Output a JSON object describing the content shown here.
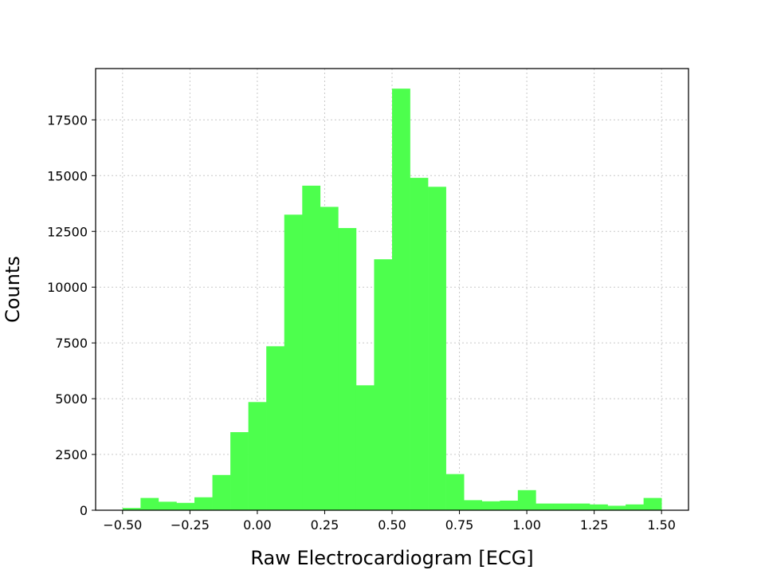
{
  "chart_data": {
    "type": "bar",
    "subtype": "histogram",
    "xlabel": "Raw Electrocardiogram [ECG]",
    "ylabel": "Counts",
    "xlim": [
      -0.6,
      1.6
    ],
    "ylim": [
      0,
      19800
    ],
    "grid": true,
    "color": "#4dff4d",
    "x_ticks": [
      {
        "value": -0.5,
        "label": "−0.50"
      },
      {
        "value": -0.25,
        "label": "−0.25"
      },
      {
        "value": 0.0,
        "label": "0.00"
      },
      {
        "value": 0.25,
        "label": "0.25"
      },
      {
        "value": 0.5,
        "label": "0.50"
      },
      {
        "value": 0.75,
        "label": "0.75"
      },
      {
        "value": 1.0,
        "label": "1.00"
      },
      {
        "value": 1.25,
        "label": "1.25"
      },
      {
        "value": 1.5,
        "label": "1.50"
      }
    ],
    "y_ticks": [
      {
        "value": 0,
        "label": "0"
      },
      {
        "value": 2500,
        "label": "2500"
      },
      {
        "value": 5000,
        "label": "5000"
      },
      {
        "value": 7500,
        "label": "7500"
      },
      {
        "value": 10000,
        "label": "10000"
      },
      {
        "value": 12500,
        "label": "12500"
      },
      {
        "value": 15000,
        "label": "15000"
      },
      {
        "value": 17500,
        "label": "17500"
      }
    ],
    "bin_edges": [
      -0.5,
      -0.4333,
      -0.3667,
      -0.3,
      -0.2333,
      -0.1667,
      -0.1,
      -0.0333,
      0.0333,
      0.1,
      0.1667,
      0.2333,
      0.3,
      0.3667,
      0.4333,
      0.5,
      0.5667,
      0.6333,
      0.7,
      0.7667,
      0.8333,
      0.9,
      0.9667,
      1.0333,
      1.1,
      1.1667,
      1.2333,
      1.3,
      1.3667,
      1.4333,
      1.5
    ],
    "values": [
      100,
      550,
      380,
      330,
      580,
      1580,
      3500,
      4850,
      7350,
      13250,
      14550,
      13600,
      12650,
      5600,
      11250,
      18900,
      14900,
      14500,
      1620,
      450,
      400,
      430,
      900,
      300,
      300,
      300,
      260,
      200,
      260,
      550
    ]
  }
}
